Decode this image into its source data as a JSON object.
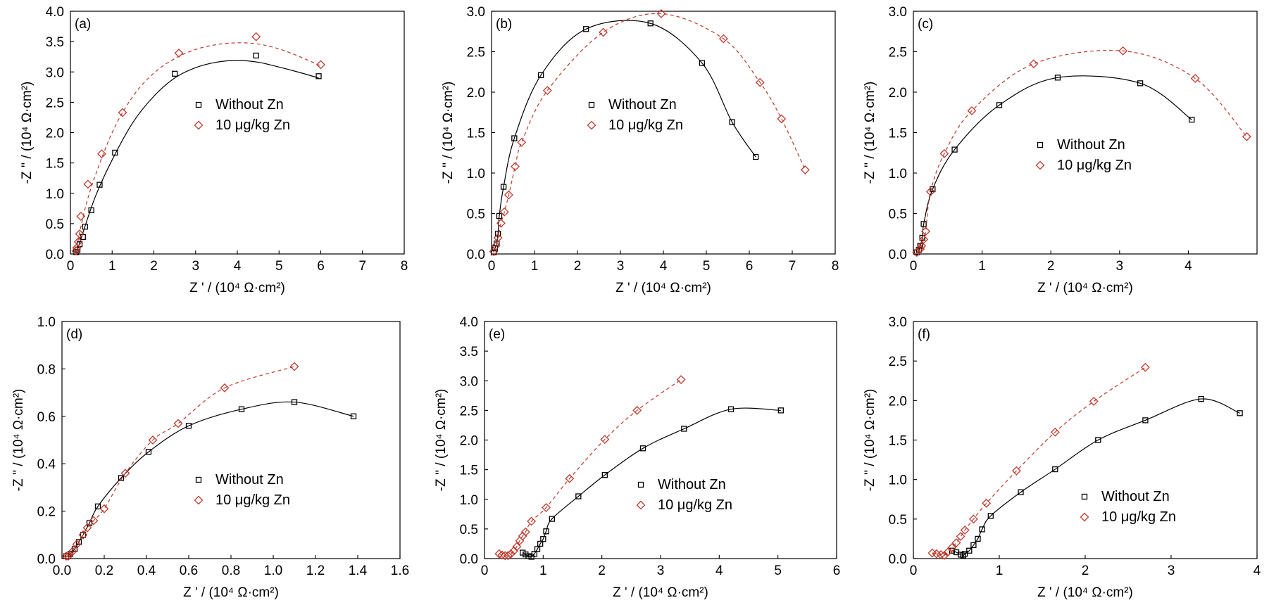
{
  "style": {
    "colors": {
      "black": "#000000",
      "red": "#c0392b"
    },
    "markers": {
      "without_zn": "square",
      "zn": "diamond"
    },
    "lines": {
      "without_zn": "solid",
      "zn": "dashed"
    }
  },
  "chart_data": [
    {
      "id": "a",
      "type": "scatter",
      "title": "(a)",
      "xlabel": "Z ' / (10⁴ Ω·cm²)",
      "ylabel": "-Z '' / (10⁴ Ω·cm²)",
      "xlim": [
        0,
        8
      ],
      "ylim": [
        0,
        4.0
      ],
      "xticks": [
        "0",
        "1",
        "2",
        "3",
        "4",
        "5",
        "6",
        "7",
        "8"
      ],
      "yticks": [
        "0.0",
        "0.5",
        "1.0",
        "1.5",
        "2.0",
        "2.5",
        "3.0",
        "3.5",
        "4.0"
      ],
      "legend": {
        "position": "middle-right",
        "entries": [
          "Without Zn",
          "10 μg/kg  Zn"
        ]
      },
      "series": [
        {
          "name": "Without Zn",
          "points": [
            [
              0.14,
              0.03
            ],
            [
              0.17,
              0.07
            ],
            [
              0.22,
              0.16
            ],
            [
              0.3,
              0.28
            ],
            [
              0.35,
              0.45
            ],
            [
              0.5,
              0.72
            ],
            [
              0.7,
              1.14
            ],
            [
              1.07,
              1.67
            ],
            [
              2.5,
              2.97
            ],
            [
              4.45,
              3.27
            ],
            [
              5.95,
              2.93
            ]
          ],
          "fit": [
            [
              0.14,
              0.0
            ],
            [
              0.3,
              0.35
            ],
            [
              0.6,
              0.95
            ],
            [
              1.0,
              1.55
            ],
            [
              1.5,
              2.17
            ],
            [
              2.0,
              2.6
            ],
            [
              2.5,
              2.9
            ],
            [
              3.0,
              3.07
            ],
            [
              3.5,
              3.16
            ],
            [
              4.0,
              3.19
            ],
            [
              4.5,
              3.16
            ],
            [
              5.0,
              3.08
            ],
            [
              5.5,
              2.99
            ],
            [
              5.95,
              2.9
            ]
          ]
        },
        {
          "name": "10 μg/kg  Zn",
          "points": [
            [
              0.13,
              0.05
            ],
            [
              0.15,
              0.1
            ],
            [
              0.19,
              0.2
            ],
            [
              0.22,
              0.33
            ],
            [
              0.25,
              0.62
            ],
            [
              0.42,
              1.15
            ],
            [
              0.75,
              1.65
            ],
            [
              1.25,
              2.33
            ],
            [
              2.6,
              3.31
            ],
            [
              4.45,
              3.58
            ],
            [
              6.0,
              3.12
            ]
          ],
          "fit": [
            [
              0.13,
              0.0
            ],
            [
              0.25,
              0.45
            ],
            [
              0.5,
              1.1
            ],
            [
              1.0,
              2.0
            ],
            [
              1.5,
              2.6
            ],
            [
              2.0,
              2.98
            ],
            [
              2.5,
              3.22
            ],
            [
              3.0,
              3.37
            ],
            [
              3.5,
              3.45
            ],
            [
              4.0,
              3.48
            ],
            [
              4.5,
              3.46
            ],
            [
              5.0,
              3.38
            ],
            [
              5.5,
              3.25
            ],
            [
              6.0,
              3.1
            ]
          ]
        }
      ]
    },
    {
      "id": "b",
      "type": "scatter",
      "title": "(b)",
      "xlabel": "Z ' / (10⁴ Ω·cm²)",
      "ylabel": "-Z '' / (10⁴ Ω·cm²)",
      "xlim": [
        0,
        8
      ],
      "ylim": [
        0,
        3.0
      ],
      "xticks": [
        "0",
        "1",
        "2",
        "3",
        "4",
        "5",
        "6",
        "7",
        "8"
      ],
      "yticks": [
        "0.0",
        "0.5",
        "1.0",
        "1.5",
        "2.0",
        "2.5",
        "3.0"
      ],
      "legend": {
        "position": "middle-left",
        "entries": [
          "Without Zn",
          "10 μg/kg  Zn"
        ]
      },
      "series": [
        {
          "name": "Without Zn",
          "points": [
            [
              0.05,
              0.02
            ],
            [
              0.08,
              0.07
            ],
            [
              0.12,
              0.13
            ],
            [
              0.15,
              0.25
            ],
            [
              0.18,
              0.47
            ],
            [
              0.28,
              0.83
            ],
            [
              0.53,
              1.43
            ],
            [
              1.15,
              2.21
            ],
            [
              2.2,
              2.78
            ],
            [
              3.7,
              2.85
            ],
            [
              4.9,
              2.36
            ],
            [
              5.6,
              1.63
            ],
            [
              6.15,
              1.2
            ]
          ]
        },
        {
          "name": "10 μg/kg  Zn",
          "points": [
            [
              0.05,
              0.03
            ],
            [
              0.1,
              0.1
            ],
            [
              0.15,
              0.2
            ],
            [
              0.22,
              0.38
            ],
            [
              0.3,
              0.52
            ],
            [
              0.4,
              0.73
            ],
            [
              0.55,
              1.08
            ],
            [
              0.7,
              1.38
            ],
            [
              1.3,
              2.02
            ],
            [
              2.6,
              2.74
            ],
            [
              3.95,
              2.97
            ],
            [
              5.4,
              2.66
            ],
            [
              6.25,
              2.12
            ],
            [
              6.75,
              1.67
            ],
            [
              7.3,
              1.04
            ]
          ]
        }
      ]
    },
    {
      "id": "c",
      "type": "scatter",
      "title": "(c)",
      "xlabel": "Z ' / (10⁴ Ω·cm²)",
      "ylabel": "-Z '' / (10⁴ Ω·cm²)",
      "xlim": [
        0,
        5
      ],
      "ylim": [
        0,
        3.0
      ],
      "xticks": [
        "0",
        "1",
        "2",
        "3",
        "4"
      ],
      "yticks": [
        "0.0",
        "0.5",
        "1.0",
        "1.5",
        "2.0",
        "2.5",
        "3.0"
      ],
      "legend": {
        "position": "middle-right",
        "entries": [
          "Without Zn",
          "10 μg/kg  Zn"
        ]
      },
      "series": [
        {
          "name": "Without Zn",
          "points": [
            [
              0.05,
              0.02
            ],
            [
              0.08,
              0.05
            ],
            [
              0.1,
              0.1
            ],
            [
              0.13,
              0.2
            ],
            [
              0.15,
              0.37
            ],
            [
              0.28,
              0.8
            ],
            [
              0.6,
              1.29
            ],
            [
              1.25,
              1.84
            ],
            [
              2.1,
              2.18
            ],
            [
              3.3,
              2.11
            ],
            [
              4.05,
              1.66
            ]
          ]
        },
        {
          "name": "10 μg/kg  Zn",
          "points": [
            [
              0.05,
              0.02
            ],
            [
              0.1,
              0.06
            ],
            [
              0.12,
              0.1
            ],
            [
              0.15,
              0.18
            ],
            [
              0.18,
              0.28
            ],
            [
              0.25,
              0.77
            ],
            [
              0.45,
              1.24
            ],
            [
              0.85,
              1.77
            ],
            [
              1.75,
              2.35
            ],
            [
              3.05,
              2.51
            ],
            [
              4.1,
              2.17
            ],
            [
              4.85,
              1.45
            ]
          ]
        }
      ]
    },
    {
      "id": "d",
      "type": "scatter",
      "title": "(d)",
      "xlabel": "Z ' / (10⁴ Ω·cm²)",
      "ylabel": "-Z '' / (10⁴ Ω·cm²)",
      "xlim": [
        0,
        1.6
      ],
      "ylim": [
        0,
        1.0
      ],
      "xticks": [
        "0.0",
        "0.2",
        "0.4",
        "0.6",
        "0.8",
        "1.0",
        "1.2",
        "1.4",
        "1.6"
      ],
      "yticks": [
        "0.0",
        "0.2",
        "0.4",
        "0.6",
        "0.8",
        "1.0"
      ],
      "legend": {
        "position": "middle-right",
        "entries": [
          "Without Zn",
          "10 μg/kg  Zn"
        ]
      },
      "series": [
        {
          "name": "Without Zn",
          "points": [
            [
              0.02,
              0.01
            ],
            [
              0.03,
              0.01
            ],
            [
              0.04,
              0.02
            ],
            [
              0.06,
              0.04
            ],
            [
              0.08,
              0.07
            ],
            [
              0.1,
              0.1
            ],
            [
              0.13,
              0.15
            ],
            [
              0.17,
              0.22
            ],
            [
              0.28,
              0.34
            ],
            [
              0.41,
              0.45
            ],
            [
              0.6,
              0.56
            ],
            [
              0.85,
              0.63
            ],
            [
              1.1,
              0.66
            ],
            [
              1.38,
              0.6
            ]
          ]
        },
        {
          "name": "10 μg/kg  Zn",
          "points": [
            [
              0.02,
              0.01
            ],
            [
              0.03,
              0.01
            ],
            [
              0.05,
              0.03
            ],
            [
              0.07,
              0.06
            ],
            [
              0.1,
              0.1
            ],
            [
              0.12,
              0.13
            ],
            [
              0.15,
              0.16
            ],
            [
              0.2,
              0.21
            ],
            [
              0.3,
              0.36
            ],
            [
              0.43,
              0.5
            ],
            [
              0.55,
              0.57
            ],
            [
              0.77,
              0.72
            ],
            [
              1.1,
              0.81
            ]
          ]
        }
      ]
    },
    {
      "id": "e",
      "type": "scatter",
      "title": "(e)",
      "xlabel": "Z ' / (10⁴ Ω·cm²)",
      "ylabel": "-Z '' / (10⁴ Ω·cm²)",
      "xlim": [
        0,
        6
      ],
      "ylim": [
        0,
        4.0
      ],
      "xticks": [
        "0",
        "1",
        "2",
        "3",
        "4",
        "5",
        "6"
      ],
      "yticks": [
        "0.0",
        "0.5",
        "1.0",
        "1.5",
        "2.0",
        "2.5",
        "3.0",
        "3.5",
        "4.0"
      ],
      "legend": {
        "position": "bottom-right",
        "entries": [
          "Without Zn",
          "10 μg/kg  Zn"
        ]
      },
      "series": [
        {
          "name": "Without Zn",
          "points": [
            [
              0.65,
              0.1
            ],
            [
              0.7,
              0.07
            ],
            [
              0.75,
              0.04
            ],
            [
              0.8,
              0.03
            ],
            [
              0.85,
              0.08
            ],
            [
              0.9,
              0.16
            ],
            [
              0.95,
              0.25
            ],
            [
              1.0,
              0.33
            ],
            [
              1.05,
              0.46
            ],
            [
              1.15,
              0.67
            ],
            [
              1.6,
              1.05
            ],
            [
              2.05,
              1.41
            ],
            [
              2.7,
              1.86
            ],
            [
              3.4,
              2.19
            ],
            [
              4.2,
              2.52
            ],
            [
              5.05,
              2.5
            ]
          ]
        },
        {
          "name": "10 μg/kg  Zn",
          "points": [
            [
              0.25,
              0.08
            ],
            [
              0.3,
              0.06
            ],
            [
              0.35,
              0.05
            ],
            [
              0.4,
              0.05
            ],
            [
              0.45,
              0.08
            ],
            [
              0.5,
              0.13
            ],
            [
              0.55,
              0.2
            ],
            [
              0.6,
              0.3
            ],
            [
              0.65,
              0.38
            ],
            [
              0.7,
              0.45
            ],
            [
              0.8,
              0.63
            ],
            [
              1.05,
              0.86
            ],
            [
              1.45,
              1.35
            ],
            [
              2.05,
              2.01
            ],
            [
              2.6,
              2.5
            ],
            [
              3.35,
              3.02
            ]
          ]
        }
      ]
    },
    {
      "id": "f",
      "type": "scatter",
      "title": "(f)",
      "xlabel": "Z ' / (10⁴ Ω·cm²)",
      "ylabel": "-Z '' / (10⁴ Ω·cm²)",
      "xlim": [
        0,
        4
      ],
      "ylim": [
        0,
        3.0
      ],
      "xticks": [
        "0",
        "1",
        "2",
        "3",
        "4"
      ],
      "yticks": [
        "0.0",
        "0.5",
        "1.0",
        "1.5",
        "2.0",
        "2.5",
        "3.0"
      ],
      "legend": {
        "position": "bottom-right",
        "entries": [
          "Without Zn",
          "10 μg/kg  Zn"
        ]
      },
      "series": [
        {
          "name": "Without Zn",
          "points": [
            [
              0.45,
              0.1
            ],
            [
              0.5,
              0.08
            ],
            [
              0.55,
              0.05
            ],
            [
              0.58,
              0.04
            ],
            [
              0.6,
              0.06
            ],
            [
              0.65,
              0.1
            ],
            [
              0.7,
              0.17
            ],
            [
              0.75,
              0.25
            ],
            [
              0.8,
              0.37
            ],
            [
              0.9,
              0.54
            ],
            [
              1.25,
              0.84
            ],
            [
              1.65,
              1.13
            ],
            [
              2.15,
              1.5
            ],
            [
              2.7,
              1.75
            ],
            [
              3.35,
              2.02
            ],
            [
              3.8,
              1.84
            ]
          ]
        },
        {
          "name": "10 μg/kg  Zn",
          "points": [
            [
              0.22,
              0.07
            ],
            [
              0.27,
              0.06
            ],
            [
              0.32,
              0.05
            ],
            [
              0.36,
              0.04
            ],
            [
              0.4,
              0.08
            ],
            [
              0.45,
              0.14
            ],
            [
              0.5,
              0.2
            ],
            [
              0.55,
              0.28
            ],
            [
              0.6,
              0.36
            ],
            [
              0.7,
              0.5
            ],
            [
              0.85,
              0.7
            ],
            [
              1.2,
              1.11
            ],
            [
              1.65,
              1.6
            ],
            [
              2.1,
              1.99
            ],
            [
              2.7,
              2.42
            ]
          ]
        }
      ]
    }
  ]
}
